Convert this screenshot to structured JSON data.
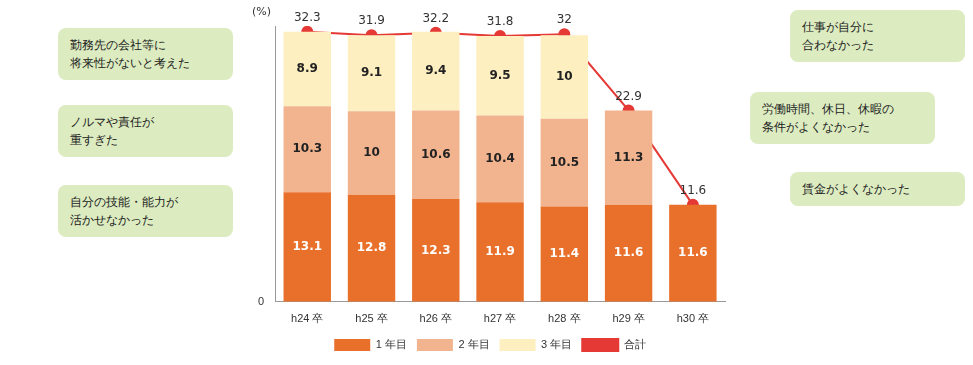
{
  "chart_data": {
    "type": "bar",
    "stacked": true,
    "data_labels": true,
    "grid": false,
    "legend": "bottom",
    "y_label": "(%)",
    "categories": [
      "h24 卒",
      "h25 卒",
      "h26 卒",
      "h27 卒",
      "h28 卒",
      "h29 卒",
      "h30 卒"
    ],
    "series": [
      {
        "name": "1 年目",
        "color": "#e8702a",
        "values": [
          13.1,
          12.8,
          12.3,
          11.9,
          11.4,
          11.6,
          11.6
        ]
      },
      {
        "name": "2 年目",
        "color": "#f2b48f",
        "values": [
          10.3,
          10.0,
          10.6,
          10.4,
          10.5,
          11.3,
          null
        ]
      },
      {
        "name": "3 年目",
        "color": "#fdefc0",
        "values": [
          8.9,
          9.1,
          9.4,
          9.5,
          10.0,
          null,
          null
        ]
      },
      {
        "name": "合計",
        "type": "line",
        "color": "#e53935",
        "marker": "circle",
        "line_style": "solid",
        "values": [
          32.3,
          31.9,
          32.2,
          31.8,
          32.0,
          22.9,
          11.6
        ]
      }
    ],
    "ylim": [
      0,
      33
    ],
    "yticks": [
      0
    ],
    "annotations": {
      "left": [
        "勤務先の会社等に\n将来性がないと考えた",
        "ノルマや責任が\n重すぎた",
        "自分の技能・能力が\n活かせなかった"
      ],
      "right": [
        "仕事が自分に\n合わなかった",
        "労働時間、休日、休暇の\n条件がよくなかった",
        "賃金がよくなかった"
      ]
    }
  }
}
